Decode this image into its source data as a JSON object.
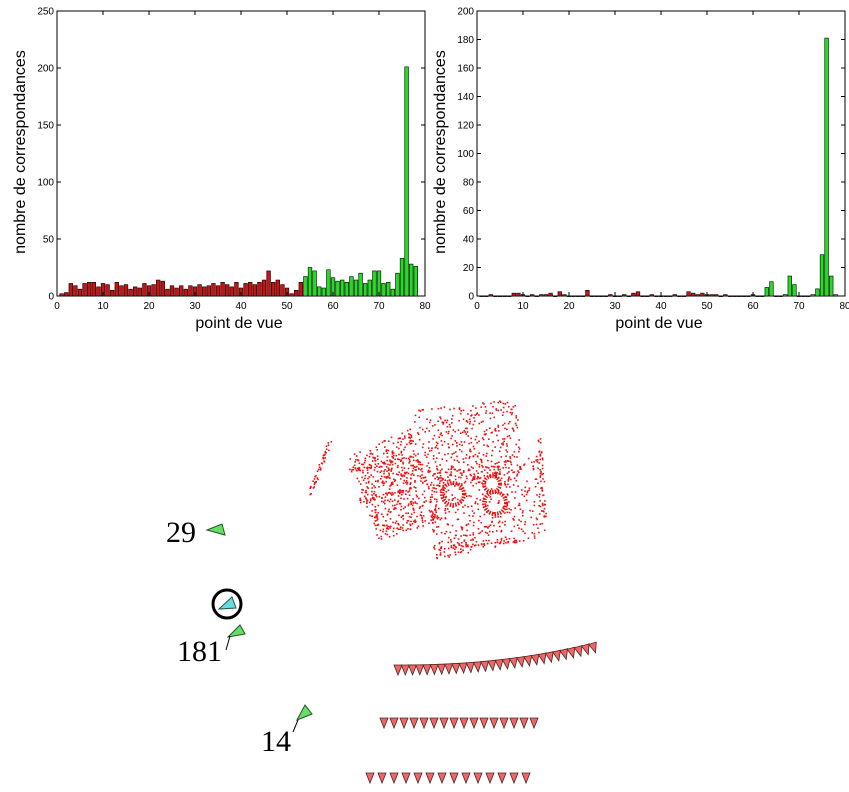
{
  "colors": {
    "red_bar": "#cc1111",
    "green_bar": "#22dd22",
    "bar_edge": "#000000",
    "point_cloud": "#ee1111",
    "camera_green": "#66dd66",
    "camera_cyan": "#66dddd",
    "camera_pink": "#ee6666"
  },
  "chart_data": [
    {
      "type": "bar",
      "xlabel": "point de vue",
      "ylabel": "nombre de correspondances",
      "xlim": [
        0,
        80
      ],
      "ylim": [
        0,
        250
      ],
      "xticks": [
        "0",
        "10",
        "20",
        "30",
        "40",
        "50",
        "60",
        "70",
        "80"
      ],
      "yticks": [
        "0",
        "50",
        "100",
        "150",
        "200",
        "250"
      ],
      "grid": false,
      "green_from": 54,
      "x": [
        1,
        2,
        3,
        4,
        5,
        6,
        7,
        8,
        9,
        10,
        11,
        12,
        13,
        14,
        15,
        16,
        17,
        18,
        19,
        20,
        21,
        22,
        23,
        24,
        25,
        26,
        27,
        28,
        29,
        30,
        31,
        32,
        33,
        34,
        35,
        36,
        37,
        38,
        39,
        40,
        41,
        42,
        43,
        44,
        45,
        46,
        47,
        48,
        49,
        50,
        51,
        52,
        53,
        54,
        55,
        56,
        57,
        58,
        59,
        60,
        61,
        62,
        63,
        64,
        65,
        66,
        67,
        68,
        69,
        70,
        71,
        72,
        73,
        74,
        75,
        76,
        77,
        78
      ],
      "values": [
        2,
        3,
        11,
        9,
        6,
        11,
        12,
        12,
        8,
        11,
        10,
        5,
        12,
        9,
        10,
        6,
        8,
        7,
        11,
        9,
        10,
        14,
        13,
        6,
        9,
        7,
        9,
        6,
        9,
        8,
        10,
        8,
        9,
        11,
        9,
        12,
        10,
        8,
        12,
        7,
        11,
        12,
        10,
        12,
        14,
        22,
        12,
        14,
        10,
        7,
        2,
        5,
        12,
        17,
        25,
        22,
        8,
        7,
        23,
        16,
        13,
        14,
        12,
        17,
        14,
        20,
        11,
        14,
        22,
        22,
        11,
        12,
        6,
        20,
        33,
        201,
        28,
        26
      ]
    },
    {
      "type": "bar",
      "xlabel": "point de vue",
      "ylabel": "nombre de correspondances",
      "xlim": [
        0,
        80
      ],
      "ylim": [
        0,
        200
      ],
      "xticks": [
        "0",
        "10",
        "20",
        "30",
        "40",
        "50",
        "60",
        "70",
        "80"
      ],
      "yticks": [
        "0",
        "20",
        "40",
        "60",
        "80",
        "100",
        "120",
        "140",
        "160",
        "180",
        "200"
      ],
      "grid": false,
      "green_from": 62,
      "x": [
        1,
        2,
        3,
        4,
        5,
        6,
        7,
        8,
        9,
        10,
        11,
        12,
        13,
        14,
        15,
        16,
        17,
        18,
        19,
        20,
        21,
        22,
        23,
        24,
        25,
        26,
        27,
        28,
        29,
        30,
        31,
        32,
        33,
        34,
        35,
        36,
        37,
        38,
        39,
        40,
        41,
        42,
        43,
        44,
        45,
        46,
        47,
        48,
        49,
        50,
        51,
        52,
        53,
        54,
        55,
        56,
        57,
        58,
        59,
        60,
        61,
        62,
        63,
        64,
        65,
        66,
        67,
        68,
        69,
        70,
        71,
        72,
        73,
        74,
        75,
        76,
        77,
        78
      ],
      "values": [
        0,
        0,
        1,
        0,
        0,
        0,
        0,
        2,
        2,
        1,
        0,
        1,
        0,
        1,
        1,
        2,
        0,
        3,
        1,
        0,
        0,
        0,
        0,
        4,
        0,
        0,
        0,
        0,
        1,
        0,
        0,
        1,
        0,
        2,
        3,
        0,
        0,
        1,
        0,
        0,
        0,
        0,
        1,
        0,
        0,
        3,
        2,
        1,
        2,
        1,
        1,
        1,
        0,
        1,
        0,
        0,
        0,
        0,
        0,
        1,
        0,
        0,
        6,
        10,
        0,
        0,
        1,
        14,
        8,
        0,
        0,
        0,
        1,
        5,
        29,
        181,
        14,
        1
      ]
    }
  ],
  "scene": {
    "labels": [
      "29",
      "181",
      "14"
    ]
  }
}
